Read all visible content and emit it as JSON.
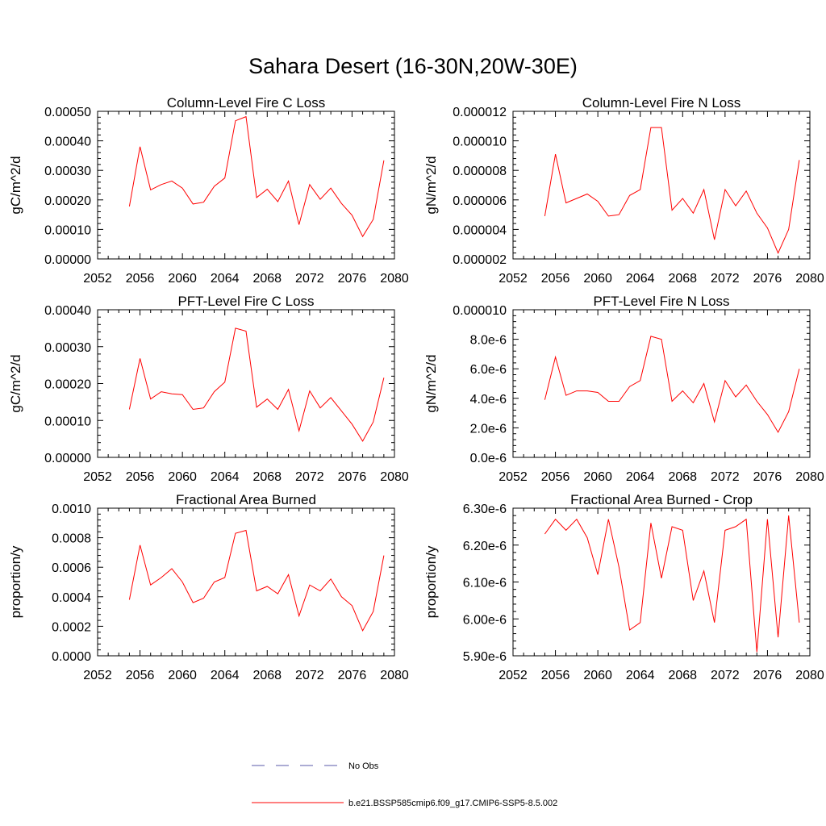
{
  "figure": {
    "title": "Sahara Desert (16-30N,20W-30E)"
  },
  "legend": {
    "items": [
      {
        "label": "No Obs",
        "style": "dashed",
        "color": "#5a5aa8"
      },
      {
        "label": "b.e21.BSSP585cmip6.f09_g17.CMIP6-SSP5-8.5.002",
        "style": "solid",
        "color": "#ff0000"
      }
    ]
  },
  "chart_data": [
    {
      "type": "line",
      "title": "Column-Level Fire C Loss",
      "ylabel": "gC/m^2/d",
      "xlim": [
        2052,
        2080
      ],
      "ylim": [
        0,
        0.0005
      ],
      "xticks": [
        2052,
        2056,
        2060,
        2064,
        2068,
        2072,
        2076,
        2080
      ],
      "yticks": [
        0,
        0.0001,
        0.0002,
        0.0003,
        0.0004,
        0.0005
      ],
      "ytick_labels": [
        "0.00000",
        "0.00010",
        "0.00020",
        "0.00030",
        "0.00040",
        "0.00050"
      ],
      "series": [
        {
          "color": "#ff0000",
          "x": [
            2055,
            2056,
            2057,
            2058,
            2059,
            2060,
            2061,
            2062,
            2063,
            2064,
            2065,
            2066,
            2067,
            2068,
            2069,
            2070,
            2071,
            2072,
            2073,
            2074,
            2075,
            2076,
            2077,
            2078,
            2079
          ],
          "y": [
            0.000178,
            0.00038,
            0.000234,
            0.000252,
            0.000264,
            0.00024,
            0.000186,
            0.000192,
            0.000246,
            0.000274,
            0.000468,
            0.000482,
            0.000208,
            0.000236,
            0.000194,
            0.000264,
            0.000116,
            0.000252,
            0.000202,
            0.00024,
            0.000188,
            0.000148,
            7.6e-05,
            0.000134,
            0.000334
          ]
        }
      ]
    },
    {
      "type": "line",
      "title": "Column-Level Fire N Loss",
      "ylabel": "gN/m^2/d",
      "xlim": [
        2052,
        2080
      ],
      "ylim": [
        2e-06,
        1.2e-05
      ],
      "xticks": [
        2052,
        2056,
        2060,
        2064,
        2068,
        2072,
        2076,
        2080
      ],
      "yticks": [
        2e-06,
        4e-06,
        6e-06,
        8e-06,
        1e-05,
        1.2e-05
      ],
      "ytick_labels": [
        "0.000002",
        "0.000004",
        "0.000006",
        "0.000008",
        "0.000010",
        "0.000012"
      ],
      "series": [
        {
          "color": "#ff0000",
          "x": [
            2055,
            2056,
            2057,
            2058,
            2059,
            2060,
            2061,
            2062,
            2063,
            2064,
            2065,
            2066,
            2067,
            2068,
            2069,
            2070,
            2071,
            2072,
            2073,
            2074,
            2075,
            2076,
            2077,
            2078,
            2079
          ],
          "y": [
            4.9e-06,
            9.1e-06,
            5.8e-06,
            6.1e-06,
            6.4e-06,
            5.9e-06,
            4.9e-06,
            5e-06,
            6.3e-06,
            6.7e-06,
            1.09e-05,
            1.09e-05,
            5.3e-06,
            6.1e-06,
            5.1e-06,
            6.7e-06,
            3.3e-06,
            6.7e-06,
            5.6e-06,
            6.6e-06,
            5.1e-06,
            4.1e-06,
            2.4e-06,
            4e-06,
            8.7e-06
          ]
        }
      ]
    },
    {
      "type": "line",
      "title": "PFT-Level Fire C Loss",
      "ylabel": "gC/m^2/d",
      "xlim": [
        2052,
        2080
      ],
      "ylim": [
        0,
        0.0004
      ],
      "xticks": [
        2052,
        2056,
        2060,
        2064,
        2068,
        2072,
        2076,
        2080
      ],
      "yticks": [
        0,
        0.0001,
        0.0002,
        0.0003,
        0.0004
      ],
      "ytick_labels": [
        "0.00000",
        "0.00010",
        "0.00020",
        "0.00030",
        "0.00040"
      ],
      "series": [
        {
          "color": "#ff0000",
          "x": [
            2055,
            2056,
            2057,
            2058,
            2059,
            2060,
            2061,
            2062,
            2063,
            2064,
            2065,
            2066,
            2067,
            2068,
            2069,
            2070,
            2071,
            2072,
            2073,
            2074,
            2075,
            2076,
            2077,
            2078,
            2079
          ],
          "y": [
            0.00013,
            0.000268,
            0.000158,
            0.000178,
            0.000172,
            0.00017,
            0.00013,
            0.000134,
            0.000178,
            0.000204,
            0.00035,
            0.000342,
            0.000136,
            0.000158,
            0.00013,
            0.000184,
            7.2e-05,
            0.00018,
            0.000134,
            0.000162,
            0.000126,
            9e-05,
            4.4e-05,
            9.6e-05,
            0.000216
          ]
        }
      ]
    },
    {
      "type": "line",
      "title": "PFT-Level Fire N Loss",
      "ylabel": "gN/m^2/d",
      "xlim": [
        2052,
        2080
      ],
      "ylim": [
        0,
        1e-05
      ],
      "xticks": [
        2052,
        2056,
        2060,
        2064,
        2068,
        2072,
        2076,
        2080
      ],
      "yticks": [
        0,
        2e-06,
        4e-06,
        6e-06,
        8e-06,
        1e-05
      ],
      "ytick_labels": [
        "0.0e-6",
        "2.0e-6",
        "4.0e-6",
        "6.0e-6",
        "8.0e-6",
        "0.000010"
      ],
      "series": [
        {
          "color": "#ff0000",
          "x": [
            2055,
            2056,
            2057,
            2058,
            2059,
            2060,
            2061,
            2062,
            2063,
            2064,
            2065,
            2066,
            2067,
            2068,
            2069,
            2070,
            2071,
            2072,
            2073,
            2074,
            2075,
            2076,
            2077,
            2078,
            2079
          ],
          "y": [
            3.9e-06,
            6.8e-06,
            4.2e-06,
            4.5e-06,
            4.5e-06,
            4.4e-06,
            3.8e-06,
            3.8e-06,
            4.8e-06,
            5.2e-06,
            8.2e-06,
            8e-06,
            3.8e-06,
            4.5e-06,
            3.7e-06,
            5e-06,
            2.4e-06,
            5.2e-06,
            4.1e-06,
            4.9e-06,
            3.8e-06,
            2.9e-06,
            1.7e-06,
            3.1e-06,
            6e-06
          ]
        }
      ]
    },
    {
      "type": "line",
      "title": "Fractional Area Burned",
      "ylabel": "proportion/y",
      "xlim": [
        2052,
        2080
      ],
      "ylim": [
        0,
        0.001
      ],
      "xticks": [
        2052,
        2056,
        2060,
        2064,
        2068,
        2072,
        2076,
        2080
      ],
      "yticks": [
        0,
        0.0002,
        0.0004,
        0.0006,
        0.0008,
        0.001
      ],
      "ytick_labels": [
        "0.0000",
        "0.0002",
        "0.0004",
        "0.0006",
        "0.0008",
        "0.0010"
      ],
      "series": [
        {
          "color": "#ff0000",
          "x": [
            2055,
            2056,
            2057,
            2058,
            2059,
            2060,
            2061,
            2062,
            2063,
            2064,
            2065,
            2066,
            2067,
            2068,
            2069,
            2070,
            2071,
            2072,
            2073,
            2074,
            2075,
            2076,
            2077,
            2078,
            2079
          ],
          "y": [
            0.00038,
            0.00075,
            0.00048,
            0.00053,
            0.00059,
            0.0005,
            0.00036,
            0.00039,
            0.0005,
            0.00053,
            0.00083,
            0.00085,
            0.00044,
            0.00047,
            0.00042,
            0.00055,
            0.00027,
            0.00048,
            0.00044,
            0.00052,
            0.0004,
            0.00034,
            0.00017,
            0.0003,
            0.00068
          ]
        }
      ]
    },
    {
      "type": "line",
      "title": "Fractional Area Burned - Crop",
      "ylabel": "proportion/y",
      "xlim": [
        2052,
        2080
      ],
      "ylim": [
        5.9e-06,
        6.3e-06
      ],
      "xticks": [
        2052,
        2056,
        2060,
        2064,
        2068,
        2072,
        2076,
        2080
      ],
      "yticks": [
        5.9e-06,
        6e-06,
        6.1e-06,
        6.2e-06,
        6.3e-06
      ],
      "ytick_labels": [
        "5.90e-6",
        "6.00e-6",
        "6.10e-6",
        "6.20e-6",
        "6.30e-6"
      ],
      "series": [
        {
          "color": "#ff0000",
          "x": [
            2055,
            2056,
            2057,
            2058,
            2059,
            2060,
            2061,
            2062,
            2063,
            2064,
            2065,
            2066,
            2067,
            2068,
            2069,
            2070,
            2071,
            2072,
            2073,
            2074,
            2075,
            2076,
            2077,
            2078,
            2079
          ],
          "y": [
            6.23e-06,
            6.27e-06,
            6.24e-06,
            6.27e-06,
            6.22e-06,
            6.12e-06,
            6.27e-06,
            6.14e-06,
            5.97e-06,
            5.99e-06,
            6.26e-06,
            6.11e-06,
            6.25e-06,
            6.24e-06,
            6.05e-06,
            6.13e-06,
            5.99e-06,
            6.24e-06,
            6.25e-06,
            6.27e-06,
            5.91e-06,
            6.27e-06,
            5.95e-06,
            6.28e-06,
            5.99e-06
          ]
        }
      ]
    }
  ]
}
